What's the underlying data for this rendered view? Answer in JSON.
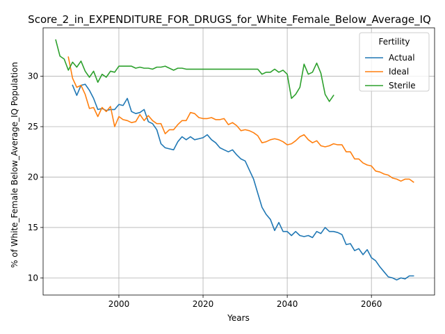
{
  "colors": {
    "actual": "#1f77b4",
    "ideal": "#ff7f0e",
    "sterile": "#2ca02c",
    "grid": "#b0b0b0",
    "axis": "#000000",
    "legend_border": "#cccccc"
  },
  "chart_data": {
    "type": "line",
    "title": "Score_2_in_EXPENDITURE_FOR_DRUGS_for_White_Female_Below_Average_IQ",
    "xlabel": "Years",
    "ylabel": "% of White_Female Below_Average_IQ Population",
    "xlim": [
      1982,
      2075
    ],
    "ylim": [
      8.3,
      34.8
    ],
    "xticks": [
      2000,
      2020,
      2040,
      2060
    ],
    "yticks": [
      10,
      15,
      20,
      25,
      30
    ],
    "grid": true,
    "legend": {
      "title": "Fertility",
      "placement": "top-right",
      "entries": [
        "Actual",
        "Ideal",
        "Sterile"
      ]
    },
    "series": [
      {
        "name": "Actual",
        "x": [
          1989,
          1990,
          1991,
          1992,
          1993,
          1994,
          1995,
          1996,
          1997,
          1998,
          1999,
          2000,
          2001,
          2002,
          2003,
          2004,
          2005,
          2006,
          2007,
          2008,
          2009,
          2010,
          2011,
          2012,
          2013,
          2014,
          2015,
          2016,
          2017,
          2018,
          2019,
          2020,
          2021,
          2022,
          2023,
          2024,
          2025,
          2026,
          2027,
          2028,
          2029,
          2030,
          2031,
          2032,
          2033,
          2034,
          2035,
          2036,
          2037,
          2038,
          2039,
          2040,
          2041,
          2042,
          2043,
          2044,
          2045,
          2046,
          2047,
          2048,
          2049,
          2050,
          2051,
          2052,
          2053,
          2054,
          2055,
          2056,
          2057,
          2058,
          2059,
          2060,
          2061,
          2062,
          2063,
          2064,
          2065,
          2066,
          2067,
          2068,
          2069,
          2070
        ],
        "values": [
          29.1,
          28.1,
          29.1,
          29.2,
          28.6,
          27.8,
          26.7,
          26.8,
          26.6,
          26.7,
          26.7,
          27.2,
          27.1,
          27.8,
          26.5,
          26.3,
          26.4,
          26.7,
          25.5,
          25.3,
          24.7,
          23.3,
          22.9,
          22.8,
          22.7,
          23.5,
          24.0,
          23.7,
          24.0,
          23.7,
          23.8,
          23.9,
          24.2,
          23.7,
          23.4,
          22.9,
          22.7,
          22.5,
          22.7,
          22.2,
          21.8,
          21.6,
          20.7,
          19.8,
          18.4,
          17.0,
          16.3,
          15.8,
          14.7,
          15.5,
          14.6,
          14.6,
          14.2,
          14.6,
          14.2,
          14.1,
          14.2,
          14.0,
          14.6,
          14.4,
          15.0,
          14.6,
          14.6,
          14.5,
          14.3,
          13.3,
          13.4,
          12.7,
          12.9,
          12.3,
          12.8,
          12.0,
          11.7,
          11.1,
          10.6,
          10.1,
          10.0,
          9.8,
          10.0,
          9.9,
          10.2,
          10.2
        ]
      },
      {
        "name": "Ideal",
        "x": [
          1988,
          1989,
          1990,
          1991,
          1992,
          1993,
          1994,
          1995,
          1996,
          1997,
          1998,
          1999,
          2000,
          2001,
          2002,
          2003,
          2004,
          2005,
          2006,
          2007,
          2008,
          2009,
          2010,
          2011,
          2012,
          2013,
          2014,
          2015,
          2016,
          2017,
          2018,
          2019,
          2020,
          2021,
          2022,
          2023,
          2024,
          2025,
          2026,
          2027,
          2028,
          2029,
          2030,
          2031,
          2032,
          2033,
          2034,
          2035,
          2036,
          2037,
          2038,
          2039,
          2040,
          2041,
          2042,
          2043,
          2044,
          2045,
          2046,
          2047,
          2048,
          2049,
          2050,
          2051,
          2052,
          2053,
          2054,
          2055,
          2056,
          2057,
          2058,
          2059,
          2060,
          2061,
          2062,
          2063,
          2064,
          2065,
          2066,
          2067,
          2068,
          2069,
          2070
        ],
        "values": [
          31.9,
          29.8,
          28.9,
          29.1,
          28.2,
          26.8,
          26.9,
          26.0,
          26.9,
          26.5,
          27.0,
          25.0,
          26.0,
          25.7,
          25.6,
          25.4,
          25.5,
          26.2,
          25.6,
          26.1,
          25.6,
          25.3,
          25.3,
          24.3,
          24.7,
          24.7,
          25.2,
          25.6,
          25.6,
          26.4,
          26.3,
          25.9,
          25.8,
          25.8,
          25.9,
          25.7,
          25.7,
          25.8,
          25.2,
          25.4,
          25.1,
          24.6,
          24.7,
          24.6,
          24.4,
          24.1,
          23.4,
          23.5,
          23.7,
          23.8,
          23.7,
          23.5,
          23.2,
          23.3,
          23.6,
          24.0,
          24.2,
          23.7,
          23.4,
          23.6,
          23.1,
          23.0,
          23.1,
          23.3,
          23.2,
          23.2,
          22.5,
          22.5,
          21.8,
          21.8,
          21.4,
          21.2,
          21.1,
          20.6,
          20.5,
          20.3,
          20.2,
          19.9,
          19.8,
          19.6,
          19.8,
          19.8,
          19.5
        ]
      },
      {
        "name": "Sterile",
        "x": [
          1985,
          1986,
          1987,
          1988,
          1989,
          1990,
          1991,
          1992,
          1993,
          1994,
          1995,
          1996,
          1997,
          1998,
          1999,
          2000,
          2001,
          2002,
          2003,
          2004,
          2005,
          2006,
          2007,
          2008,
          2009,
          2010,
          2011,
          2012,
          2013,
          2014,
          2015,
          2016,
          2017,
          2018,
          2019,
          2020,
          2021,
          2022,
          2023,
          2024,
          2025,
          2026,
          2027,
          2028,
          2029,
          2030,
          2031,
          2032,
          2033,
          2034,
          2035,
          2036,
          2037,
          2038,
          2039,
          2040,
          2041,
          2042,
          2043,
          2044,
          2045,
          2046,
          2047,
          2048,
          2049,
          2050,
          2051
        ],
        "values": [
          33.6,
          32.0,
          31.7,
          30.6,
          31.4,
          30.9,
          31.5,
          30.5,
          29.9,
          30.5,
          29.4,
          30.2,
          29.9,
          30.5,
          30.4,
          31.0,
          31.0,
          31.0,
          31.0,
          30.8,
          30.9,
          30.8,
          30.8,
          30.7,
          30.9,
          30.9,
          31.0,
          30.8,
          30.6,
          30.8,
          30.8,
          30.7,
          30.7,
          30.7,
          30.7,
          30.7,
          30.7,
          30.7,
          30.7,
          30.7,
          30.7,
          30.7,
          30.7,
          30.7,
          30.7,
          30.7,
          30.7,
          30.7,
          30.7,
          30.2,
          30.4,
          30.4,
          30.7,
          30.4,
          30.6,
          30.2,
          27.8,
          28.2,
          28.9,
          31.2,
          30.2,
          30.4,
          31.3,
          30.3,
          28.2,
          27.5,
          28.1
        ]
      }
    ]
  }
}
